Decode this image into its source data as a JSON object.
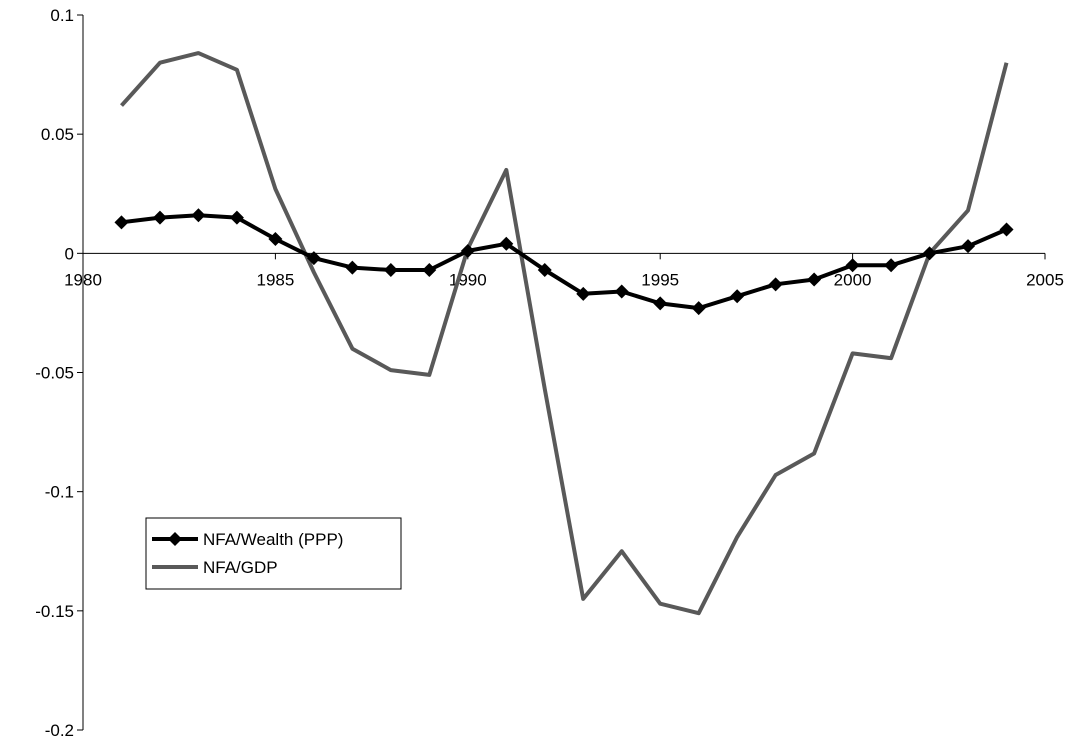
{
  "chart_data": {
    "type": "line",
    "title": "",
    "xlabel": "",
    "ylabel": "",
    "xlim": [
      1980,
      2005
    ],
    "ylim": [
      -0.2,
      0.1
    ],
    "x_ticks": [
      1980,
      1985,
      1990,
      1995,
      2000,
      2005
    ],
    "x_tick_labels": [
      "1980",
      "1985",
      "1990",
      "1995",
      "2000",
      "2005"
    ],
    "y_ticks": [
      0.1,
      0.05,
      0,
      -0.05,
      -0.1,
      -0.15,
      -0.2
    ],
    "y_tick_labels": [
      "0.1",
      "0.05",
      "0",
      "-0.05",
      "-0.1",
      "-0.15",
      "-0.2"
    ],
    "grid": false,
    "legend_position": "bottom-left",
    "x": [
      1981,
      1982,
      1983,
      1984,
      1985,
      1986,
      1987,
      1988,
      1989,
      1990,
      1991,
      1992,
      1993,
      1994,
      1995,
      1996,
      1997,
      1998,
      1999,
      2000,
      2001,
      2002,
      2003,
      2004
    ],
    "series": [
      {
        "name": "NFA/Wealth (PPP)",
        "color": "#000000",
        "marker": "diamond",
        "values": [
          0.013,
          0.015,
          0.016,
          0.015,
          0.006,
          -0.002,
          -0.006,
          -0.007,
          -0.007,
          0.001,
          0.004,
          -0.007,
          -0.017,
          -0.016,
          -0.021,
          -0.023,
          -0.018,
          -0.013,
          -0.011,
          -0.005,
          -0.005,
          0.0,
          0.003,
          0.01
        ]
      },
      {
        "name": "NFA/GDP",
        "color": "#595959",
        "marker": "none",
        "values": [
          0.062,
          0.08,
          0.084,
          0.077,
          0.027,
          -0.008,
          -0.04,
          -0.049,
          -0.051,
          0.002,
          0.035,
          -0.057,
          -0.145,
          -0.125,
          -0.147,
          -0.151,
          -0.119,
          -0.093,
          -0.084,
          -0.042,
          -0.044,
          0.0,
          0.018,
          0.08
        ]
      }
    ]
  }
}
